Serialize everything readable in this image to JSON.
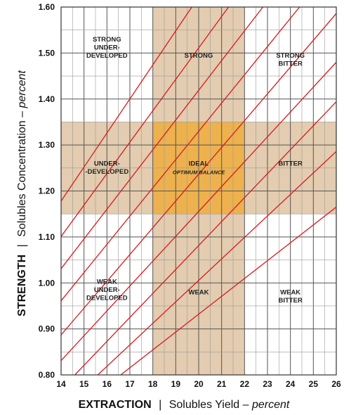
{
  "chart_data": {
    "type": "line",
    "xlim": [
      14,
      26
    ],
    "ylim": [
      0.8,
      1.6
    ],
    "x_ticks": [
      14,
      15,
      16,
      17,
      18,
      19,
      20,
      21,
      22,
      23,
      24,
      25,
      26
    ],
    "y_ticks": [
      "0.80",
      "0.90",
      "1.00",
      "1.10",
      "1.20",
      "1.30",
      "1.40",
      "1.50",
      "1.60"
    ],
    "grid": true,
    "bands": {
      "x_range": [
        18,
        22
      ],
      "y_range": [
        1.15,
        1.35
      ],
      "band_color": "#e3ccaf",
      "ideal_color": "#edb14e"
    },
    "line_color": "#d71920",
    "series": [
      {
        "x": [
          14.0,
          19.7
        ],
        "y": [
          1.178,
          1.6
        ]
      },
      {
        "x": [
          14.0,
          21.3
        ],
        "y": [
          1.101,
          1.6
        ]
      },
      {
        "x": [
          14.0,
          22.8
        ],
        "y": [
          1.031,
          1.6
        ]
      },
      {
        "x": [
          14.0,
          24.4
        ],
        "y": [
          0.961,
          1.6
        ]
      },
      {
        "x": [
          14.0,
          26.0
        ],
        "y": [
          0.887,
          1.586
        ]
      },
      {
        "x": [
          14.0,
          26.0
        ],
        "y": [
          0.831,
          1.48
        ]
      },
      {
        "x": [
          14.6,
          26.0
        ],
        "y": [
          0.8,
          1.394
        ]
      },
      {
        "x": [
          15.6,
          26.0
        ],
        "y": [
          0.8,
          1.286
        ]
      },
      {
        "x": [
          16.6,
          26.0
        ],
        "y": [
          0.8,
          1.165
        ]
      }
    ],
    "xlabel": {
      "strong": "EXTRACTION",
      "sep": "|",
      "text": "Solubles Yield – ",
      "italic": "percent"
    },
    "ylabel": {
      "strong": "STRENGTH",
      "sep": "|",
      "text": "Solubles Concentration – ",
      "italic": "percent"
    },
    "annotations": [
      {
        "x": 16.0,
        "y": 1.525,
        "lines": [
          "STRONG",
          "UNDER-",
          "DEVELOPED"
        ]
      },
      {
        "x": 20.0,
        "y": 1.49,
        "lines": [
          "STRONG"
        ]
      },
      {
        "x": 24.0,
        "y": 1.49,
        "lines": [
          "STRONG",
          "BITTER"
        ]
      },
      {
        "x": 16.0,
        "y": 1.255,
        "lines": [
          "UNDER-",
          "-DEVELOPED"
        ]
      },
      {
        "x": 20.0,
        "y": 1.255,
        "lines": [
          "IDEAL"
        ],
        "sub": "OPTIMUM BALANCE"
      },
      {
        "x": 24.0,
        "y": 1.255,
        "lines": [
          "BITTER"
        ]
      },
      {
        "x": 16.0,
        "y": 0.998,
        "lines": [
          "WEAK",
          "UNDER-",
          "DEVELOPED"
        ]
      },
      {
        "x": 20.0,
        "y": 0.975,
        "lines": [
          "WEAK"
        ]
      },
      {
        "x": 24.0,
        "y": 0.975,
        "lines": [
          "WEAK",
          "BITTER"
        ]
      }
    ]
  }
}
